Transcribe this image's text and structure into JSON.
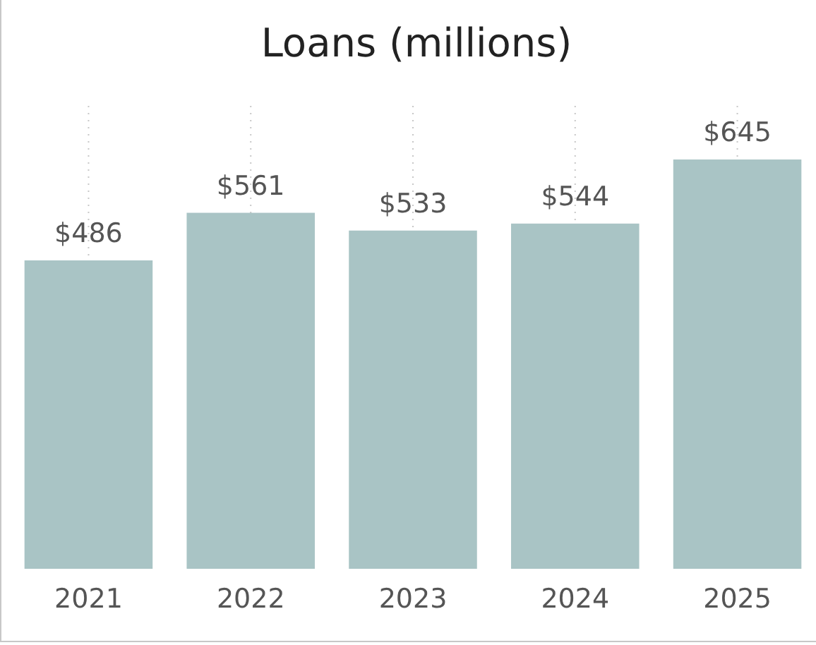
{
  "chart_data": {
    "type": "bar",
    "title": "Loans (millions)",
    "categories": [
      "2021",
      "2022",
      "2023",
      "2024",
      "2025"
    ],
    "values": [
      486,
      561,
      533,
      544,
      645
    ],
    "color": "#a9c4c5",
    "data_labels": true,
    "value_labels": [
      "$486",
      "$561",
      "$533",
      "$544",
      "$645"
    ],
    "grid": "x"
  }
}
